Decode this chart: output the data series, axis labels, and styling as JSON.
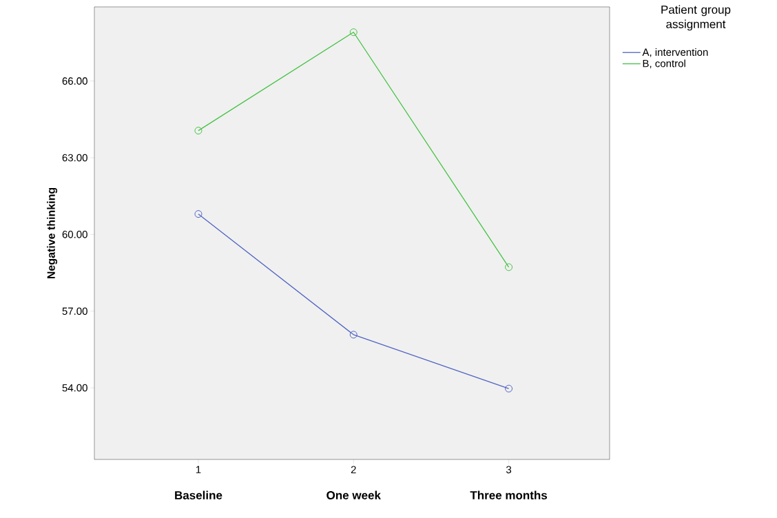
{
  "chart_data": {
    "type": "line",
    "ylabel": "Negative thinking",
    "legend_title": "Patient group assignment",
    "x": [
      1,
      2,
      3
    ],
    "xlim": [
      0.33,
      3.65
    ],
    "xticks": [
      1,
      2,
      3
    ],
    "ylim": [
      51.2,
      68.9
    ],
    "yticks": [
      {
        "value": 54,
        "label": "54.00"
      },
      {
        "value": 57,
        "label": "57.00"
      },
      {
        "value": 60,
        "label": "60.00"
      },
      {
        "value": 63,
        "label": "63.00"
      },
      {
        "value": 66,
        "label": "66.00"
      }
    ],
    "series": [
      {
        "name": "A, intervention",
        "color": "#4f63c4",
        "values": [
          60.8,
          56.08,
          53.97
        ]
      },
      {
        "name": "B, control",
        "color": "#44c244",
        "values": [
          64.06,
          67.91,
          58.72
        ]
      }
    ],
    "annotations": [
      "Baseline",
      "One week",
      "Three months"
    ],
    "marker": "circle",
    "line_style": "solid",
    "grid": false,
    "legend": "top right"
  }
}
